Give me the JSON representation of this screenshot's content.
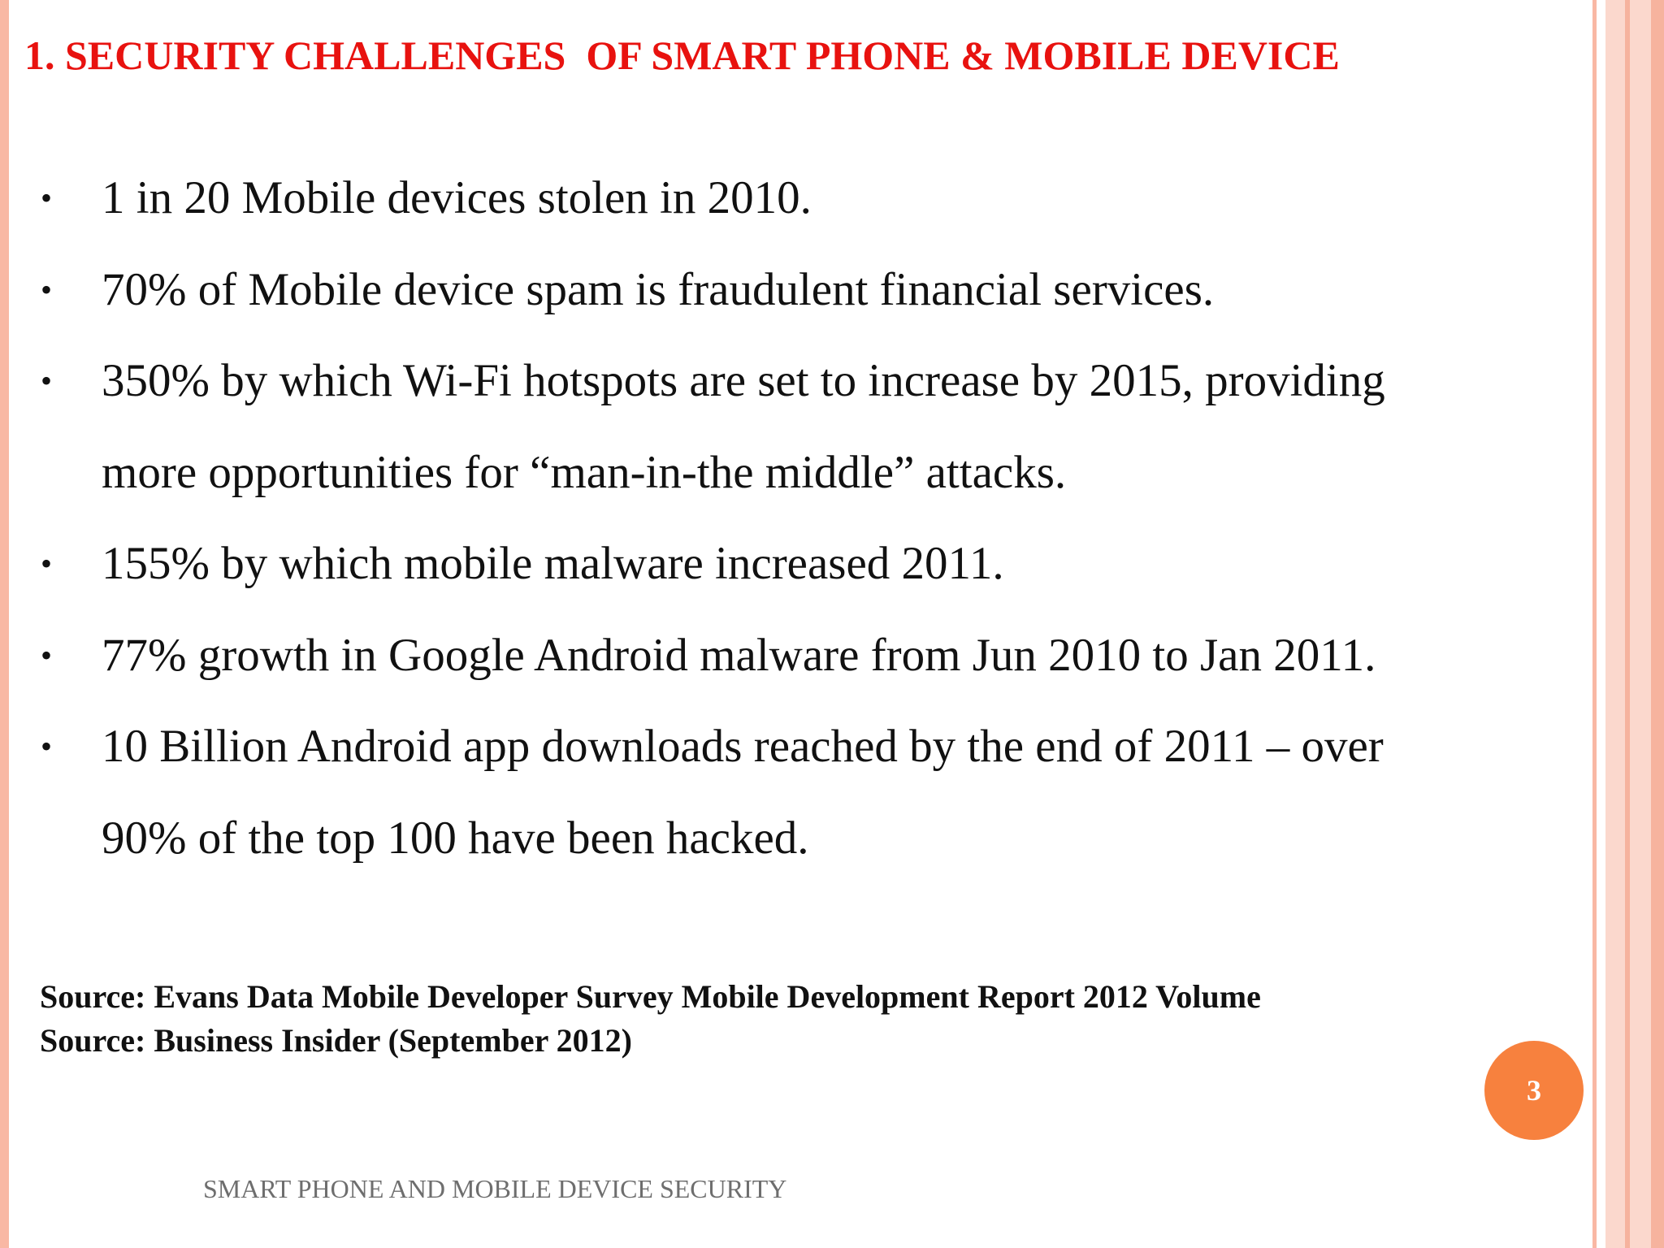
{
  "slide": {
    "title": "1. SECURITY CHALLENGES  OF SMART PHONE & MOBILE DEVICE",
    "bullets": [
      {
        "lines": [
          "1 in 20 Mobile devices stolen in 2010."
        ]
      },
      {
        "lines": [
          "70% of Mobile device spam is fraudulent financial services."
        ]
      },
      {
        "lines": [
          "350% by which Wi-Fi hotspots are set to increase by 2015, providing",
          "more opportunities for “man-in-the middle” attacks."
        ]
      },
      {
        "lines": [
          "155% by which mobile malware increased 2011."
        ]
      },
      {
        "lines": [
          "77% growth in Google Android malware from Jun 2010 to Jan 2011."
        ]
      },
      {
        "lines": [
          "10 Billion Android app downloads reached by the end of 2011 – over",
          "90% of the top 100 have been hacked."
        ]
      }
    ],
    "sources": [
      "Source: Evans Data Mobile Developer Survey Mobile Development Report 2012 Volume",
      "Source: Business Insider (September 2012)"
    ],
    "page_number": "3",
    "footer": "SMART PHONE AND MOBILE DEVICE SECURITY"
  },
  "colors": {
    "title": "#e8120f",
    "badge": "#f7813e",
    "border": "#f9b8a4",
    "footer": "#6e6e6e"
  }
}
